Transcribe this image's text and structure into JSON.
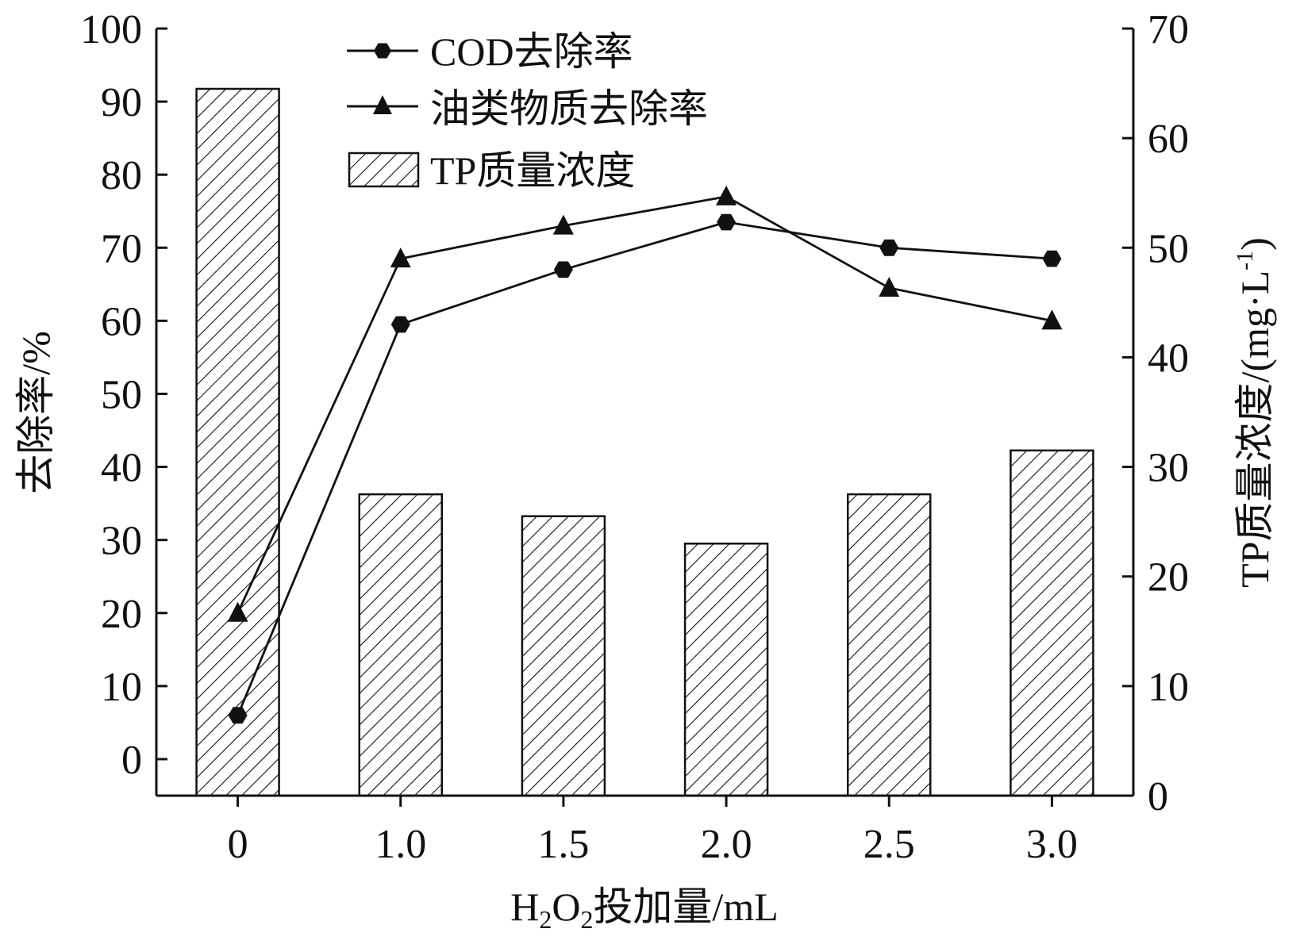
{
  "chart_data": {
    "type": "bar+line",
    "categories": [
      "0",
      "1.0",
      "1.5",
      "2.0",
      "2.5",
      "3.0"
    ],
    "bars": {
      "name": "TP质量浓度",
      "axis": "right",
      "values": [
        64.5,
        27.5,
        25.5,
        23.0,
        27.5,
        31.5
      ],
      "pattern": "diagonal-hatch"
    },
    "series": [
      {
        "name": "COD去除率",
        "axis": "left",
        "marker": "hexagon",
        "values": [
          6.0,
          59.5,
          67.0,
          73.5,
          70.0,
          68.5
        ]
      },
      {
        "name": "油类物质去除率",
        "axis": "left",
        "marker": "triangle",
        "values": [
          20.0,
          68.5,
          73.0,
          77.0,
          64.5,
          60.0
        ]
      }
    ],
    "left_axis": {
      "label": "去除率/%",
      "range": [
        -5,
        100
      ],
      "ticks": [
        0,
        10,
        20,
        30,
        40,
        50,
        60,
        70,
        80,
        90,
        100
      ]
    },
    "right_axis": {
      "label_main": "TP质量浓度/(mg·L",
      "label_sup": "-1",
      "label_end": ")",
      "range": [
        0,
        70
      ],
      "ticks": [
        0,
        10,
        20,
        30,
        40,
        50,
        60,
        70
      ]
    },
    "x_axis": {
      "label_parts": [
        "H",
        "2",
        "O",
        "2",
        "投加量/mL"
      ]
    },
    "legend": {
      "placement": "top-left",
      "entries": [
        "COD去除率",
        "油类物质去除率",
        "TP质量浓度"
      ]
    },
    "colors": {
      "line": "#111111",
      "bar_fill": "#ffffff",
      "hatch": "#111111"
    }
  }
}
